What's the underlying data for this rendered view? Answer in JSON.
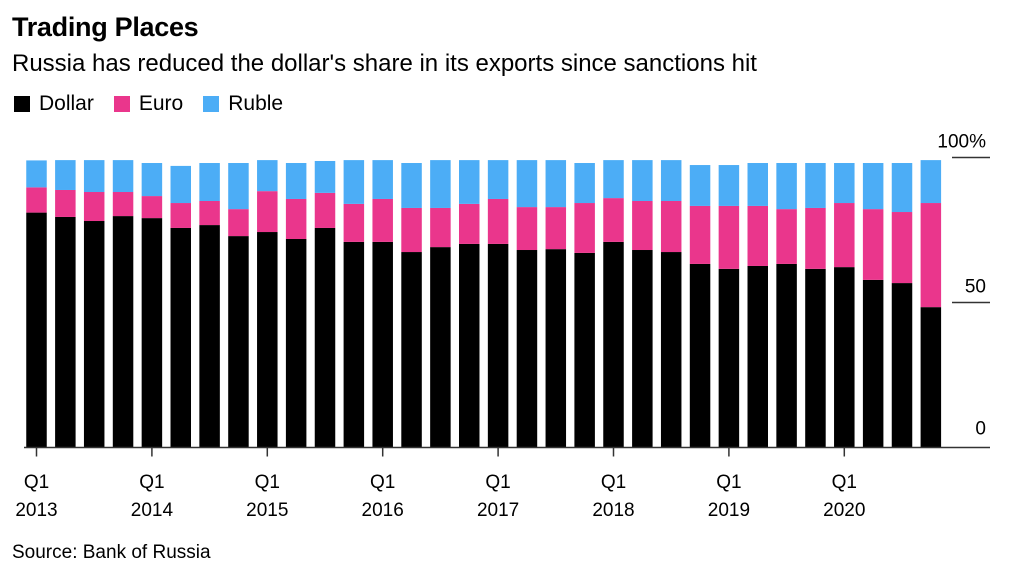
{
  "header": {
    "title": "Trading Places",
    "subtitle": "Russia has reduced the dollar's share in its exports since sanctions hit"
  },
  "source": "Source: Bank of Russia",
  "chart_data": {
    "type": "bar",
    "stacked": true,
    "title": "Trading Places",
    "subtitle": "Russia has reduced the dollar's share in its exports since sanctions hit",
    "xlabel": "",
    "ylabel": "",
    "ylim": [
      0,
      100
    ],
    "yticks": [
      {
        "value": 0,
        "label": "0"
      },
      {
        "value": 50,
        "label": "50"
      },
      {
        "value": 100,
        "label": "100%"
      }
    ],
    "y_axis_position": "right",
    "grid": false,
    "legend_position": "top-left",
    "categories": [
      "Q1 2013",
      "Q2 2013",
      "Q3 2013",
      "Q4 2013",
      "Q1 2014",
      "Q2 2014",
      "Q3 2014",
      "Q4 2014",
      "Q1 2015",
      "Q2 2015",
      "Q3 2015",
      "Q4 2015",
      "Q1 2016",
      "Q2 2016",
      "Q3 2016",
      "Q4 2016",
      "Q1 2017",
      "Q2 2017",
      "Q3 2017",
      "Q4 2017",
      "Q1 2018",
      "Q2 2018",
      "Q3 2018",
      "Q4 2018",
      "Q1 2019",
      "Q2 2019",
      "Q3 2019",
      "Q4 2019",
      "Q1 2020",
      "Q2 2020",
      "Q3 2020",
      "Q4 2020"
    ],
    "xtick_labels": [
      {
        "index": 0,
        "line1": "Q1",
        "line2": "2013"
      },
      {
        "index": 4,
        "line1": "Q1",
        "line2": "2014"
      },
      {
        "index": 8,
        "line1": "Q1",
        "line2": "2015"
      },
      {
        "index": 12,
        "line1": "Q1",
        "line2": "2016"
      },
      {
        "index": 16,
        "line1": "Q1",
        "line2": "2017"
      },
      {
        "index": 20,
        "line1": "Q1",
        "line2": "2018"
      },
      {
        "index": 24,
        "line1": "Q1",
        "line2": "2019"
      },
      {
        "index": 28,
        "line1": "Q1",
        "line2": "2020"
      }
    ],
    "series": [
      {
        "name": "Dollar",
        "color": "#000000",
        "values": [
          81.0,
          79.5,
          78.1,
          79.8,
          79.1,
          75.7,
          76.7,
          72.9,
          74.3,
          71.9,
          75.7,
          70.9,
          70.9,
          67.4,
          69.1,
          70.2,
          70.2,
          68.1,
          68.4,
          67.1,
          70.9,
          68.1,
          67.4,
          63.3,
          61.6,
          62.6,
          63.3,
          61.6,
          62.2,
          57.8,
          56.7,
          48.4
        ]
      },
      {
        "name": "Euro",
        "color": "#EA368C",
        "values": [
          8.7,
          9.3,
          10.0,
          8.3,
          7.6,
          8.6,
          8.3,
          9.3,
          14.1,
          13.8,
          12.1,
          13.1,
          14.8,
          15.2,
          13.5,
          13.8,
          15.5,
          14.8,
          14.5,
          17.2,
          15.1,
          16.9,
          17.6,
          20.0,
          21.7,
          20.7,
          18.9,
          21.0,
          22.1,
          24.4,
          24.5,
          35.9
        ]
      },
      {
        "name": "Ruble",
        "color": "#4CADF6",
        "values": [
          9.3,
          10.3,
          11.0,
          11.0,
          11.4,
          12.8,
          13.1,
          15.9,
          10.7,
          12.4,
          11.0,
          15.1,
          13.4,
          15.5,
          16.5,
          15.1,
          13.4,
          16.2,
          16.2,
          13.8,
          13.1,
          14.1,
          14.1,
          14.1,
          14.1,
          14.8,
          15.9,
          15.5,
          13.8,
          15.9,
          16.9,
          14.8
        ]
      }
    ]
  }
}
